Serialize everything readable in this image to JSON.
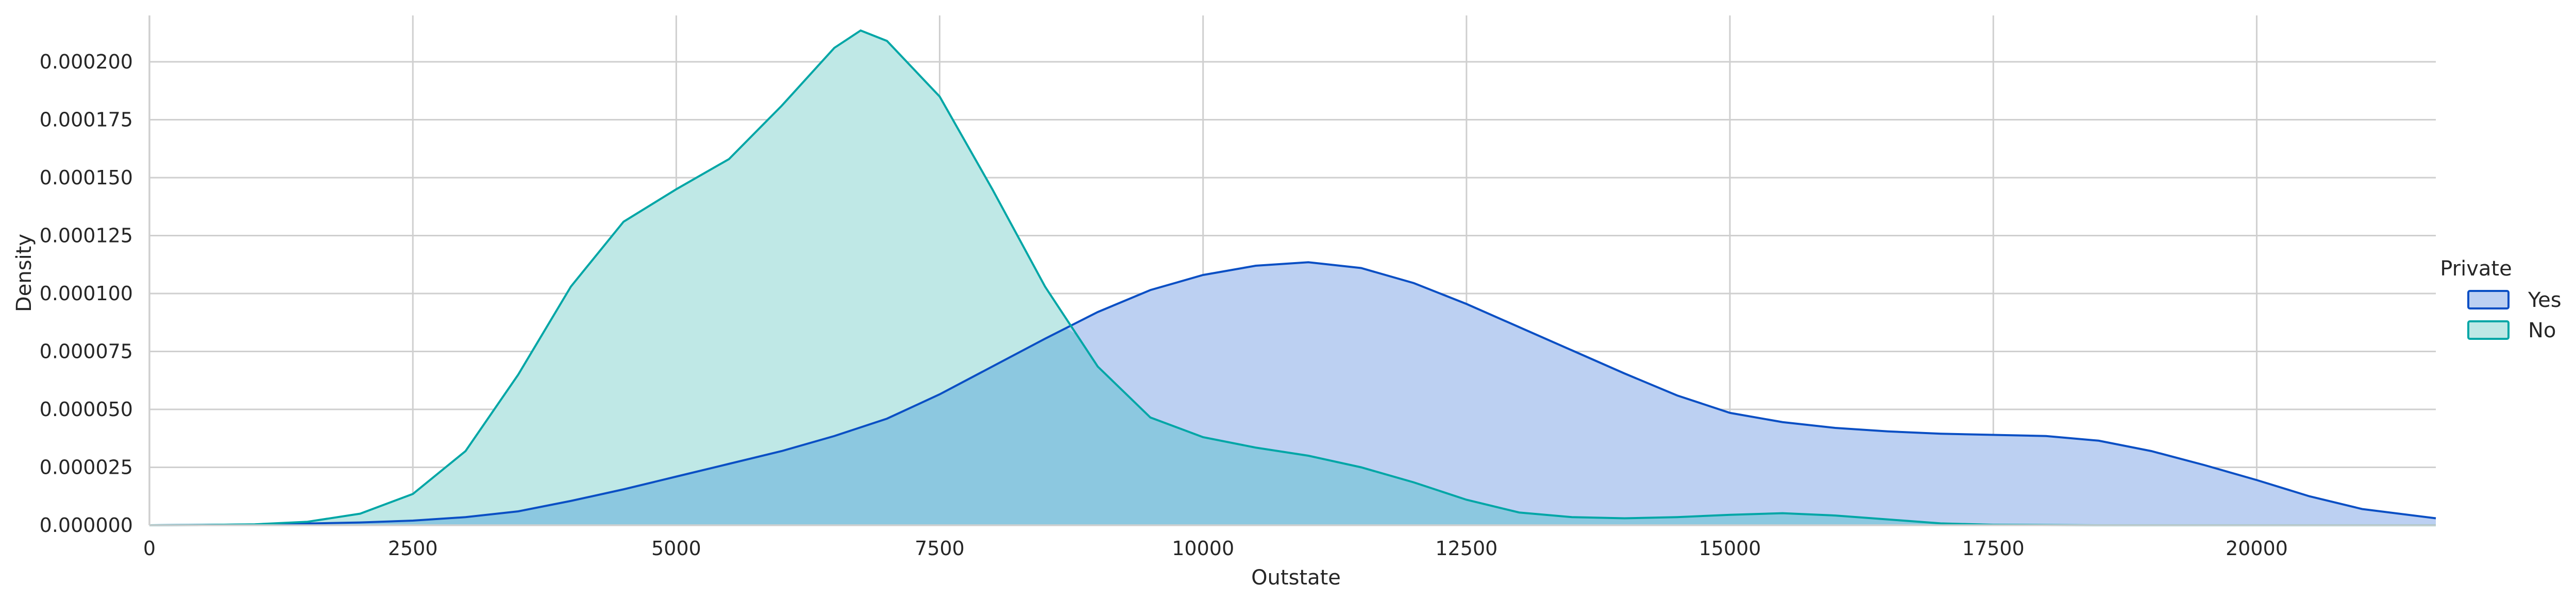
{
  "chart_data": {
    "type": "area",
    "title": "",
    "xlabel": "Outstate",
    "ylabel": "Density",
    "xlim": [
      0,
      21700
    ],
    "ylim": [
      0,
      0.00022
    ],
    "xticks": [
      0,
      2500,
      5000,
      7500,
      10000,
      12500,
      15000,
      17500,
      20000
    ],
    "yticks": [
      "0.000000",
      "0.000025",
      "0.000050",
      "0.000075",
      "0.000100",
      "0.000125",
      "0.000150",
      "0.000175",
      "0.000200"
    ],
    "ytick_values": [
      0,
      2.5e-05,
      5e-05,
      7.5e-05,
      0.0001,
      0.000125,
      0.00015,
      0.000175,
      0.0002
    ],
    "grid": true,
    "legend": {
      "title": "Private",
      "placement": "center-right"
    },
    "series": [
      {
        "name": "Yes",
        "line_color": "#0a4fc4",
        "fill_color": "#bcd0f2",
        "points": [
          [
            0,
            0
          ],
          [
            1000,
            3e-07
          ],
          [
            2000,
            1.2e-06
          ],
          [
            2500,
            2e-06
          ],
          [
            3000,
            3.5e-06
          ],
          [
            3500,
            6e-06
          ],
          [
            4000,
            1.05e-05
          ],
          [
            4500,
            1.55e-05
          ],
          [
            5000,
            2.1e-05
          ],
          [
            5500,
            2.65e-05
          ],
          [
            6000,
            3.2e-05
          ],
          [
            6500,
            3.85e-05
          ],
          [
            7000,
            4.6e-05
          ],
          [
            7500,
            5.65e-05
          ],
          [
            8000,
            6.85e-05
          ],
          [
            8500,
            8.05e-05
          ],
          [
            9000,
            9.2e-05
          ],
          [
            9500,
            0.0001015
          ],
          [
            10000,
            0.000108
          ],
          [
            10500,
            0.000112
          ],
          [
            11000,
            0.0001135
          ],
          [
            11500,
            0.000111
          ],
          [
            12000,
            0.0001045
          ],
          [
            12500,
            9.55e-05
          ],
          [
            13000,
            8.55e-05
          ],
          [
            13500,
            7.55e-05
          ],
          [
            14000,
            6.55e-05
          ],
          [
            14500,
            5.6e-05
          ],
          [
            15000,
            4.85e-05
          ],
          [
            15500,
            4.45e-05
          ],
          [
            16000,
            4.2e-05
          ],
          [
            16500,
            4.05e-05
          ],
          [
            17000,
            3.95e-05
          ],
          [
            17500,
            3.9e-05
          ],
          [
            18000,
            3.85e-05
          ],
          [
            18500,
            3.65e-05
          ],
          [
            19000,
            3.2e-05
          ],
          [
            19500,
            2.6e-05
          ],
          [
            20000,
            1.95e-05
          ],
          [
            20500,
            1.25e-05
          ],
          [
            21000,
            7e-06
          ],
          [
            21700,
            3e-06
          ]
        ]
      },
      {
        "name": "No",
        "line_color": "#00a6a6",
        "fill_color": "#bfe8e6",
        "points": [
          [
            0,
            0
          ],
          [
            500,
            1e-07
          ],
          [
            1000,
            4e-07
          ],
          [
            1500,
            1.5e-06
          ],
          [
            2000,
            5e-06
          ],
          [
            2500,
            1.35e-05
          ],
          [
            3000,
            3.2e-05
          ],
          [
            3500,
            6.5e-05
          ],
          [
            4000,
            0.000103
          ],
          [
            4500,
            0.000131
          ],
          [
            5000,
            0.000145
          ],
          [
            5500,
            0.000158
          ],
          [
            6000,
            0.000181
          ],
          [
            6500,
            0.000206
          ],
          [
            6750,
            0.0002135
          ],
          [
            7000,
            0.000209
          ],
          [
            7500,
            0.000185
          ],
          [
            8000,
            0.000145
          ],
          [
            8500,
            0.000103
          ],
          [
            9000,
            6.85e-05
          ],
          [
            9500,
            4.65e-05
          ],
          [
            10000,
            3.8e-05
          ],
          [
            10500,
            3.35e-05
          ],
          [
            11000,
            3e-05
          ],
          [
            11500,
            2.5e-05
          ],
          [
            12000,
            1.85e-05
          ],
          [
            12500,
            1.1e-05
          ],
          [
            13000,
            5.5e-06
          ],
          [
            13500,
            3.5e-06
          ],
          [
            14000,
            3e-06
          ],
          [
            14500,
            3.5e-06
          ],
          [
            15000,
            4.5e-06
          ],
          [
            15500,
            5.2e-06
          ],
          [
            16000,
            4.2e-06
          ],
          [
            16500,
            2.5e-06
          ],
          [
            17000,
            8e-07
          ],
          [
            17500,
            2e-07
          ],
          [
            18500,
            0
          ],
          [
            21700,
            0
          ]
        ]
      }
    ],
    "overlap_color": "#8cc8e0"
  }
}
